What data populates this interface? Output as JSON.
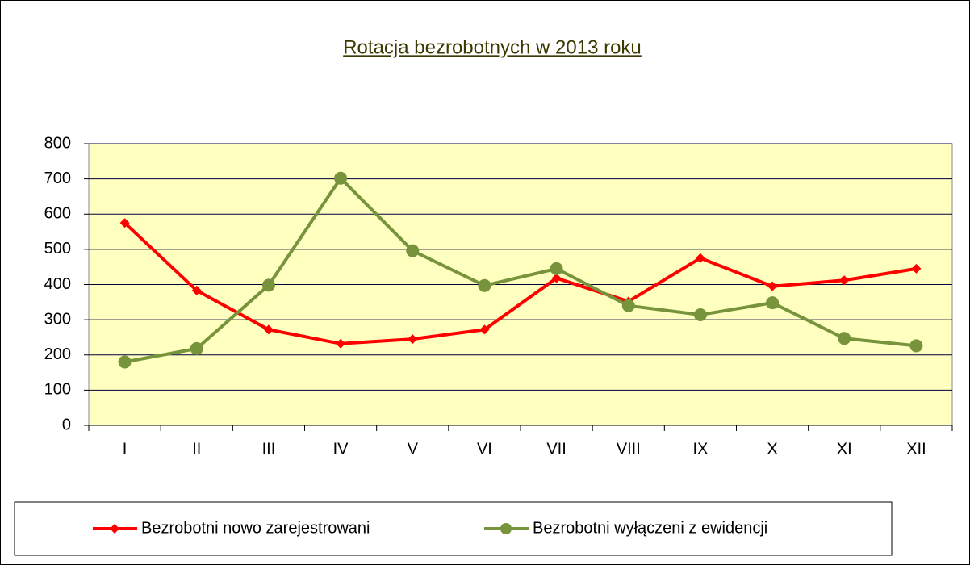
{
  "chart_data": {
    "type": "line",
    "title": "Rotacja bezrobotnych  w 2013  roku",
    "categories": [
      "I",
      "II",
      "III",
      "IV",
      "V",
      "VI",
      "VII",
      "VIII",
      "IX",
      "X",
      "XI",
      "XII"
    ],
    "series": [
      {
        "name": "Bezrobotni nowo zarejestrowani",
        "color": "#ff0000",
        "values": [
          575,
          383,
          272,
          232,
          245,
          272,
          418,
          352,
          475,
          395,
          412,
          445
        ]
      },
      {
        "name": "Bezrobotni wyłączeni z ewidencji",
        "color": "#77933c",
        "values": [
          180,
          218,
          398,
          702,
          496,
          397,
          445,
          340,
          314,
          348,
          247,
          226
        ]
      }
    ],
    "ylim": [
      0,
      800
    ],
    "yticks": [
      0,
      100,
      200,
      300,
      400,
      500,
      600,
      700,
      800
    ],
    "grid": true
  }
}
